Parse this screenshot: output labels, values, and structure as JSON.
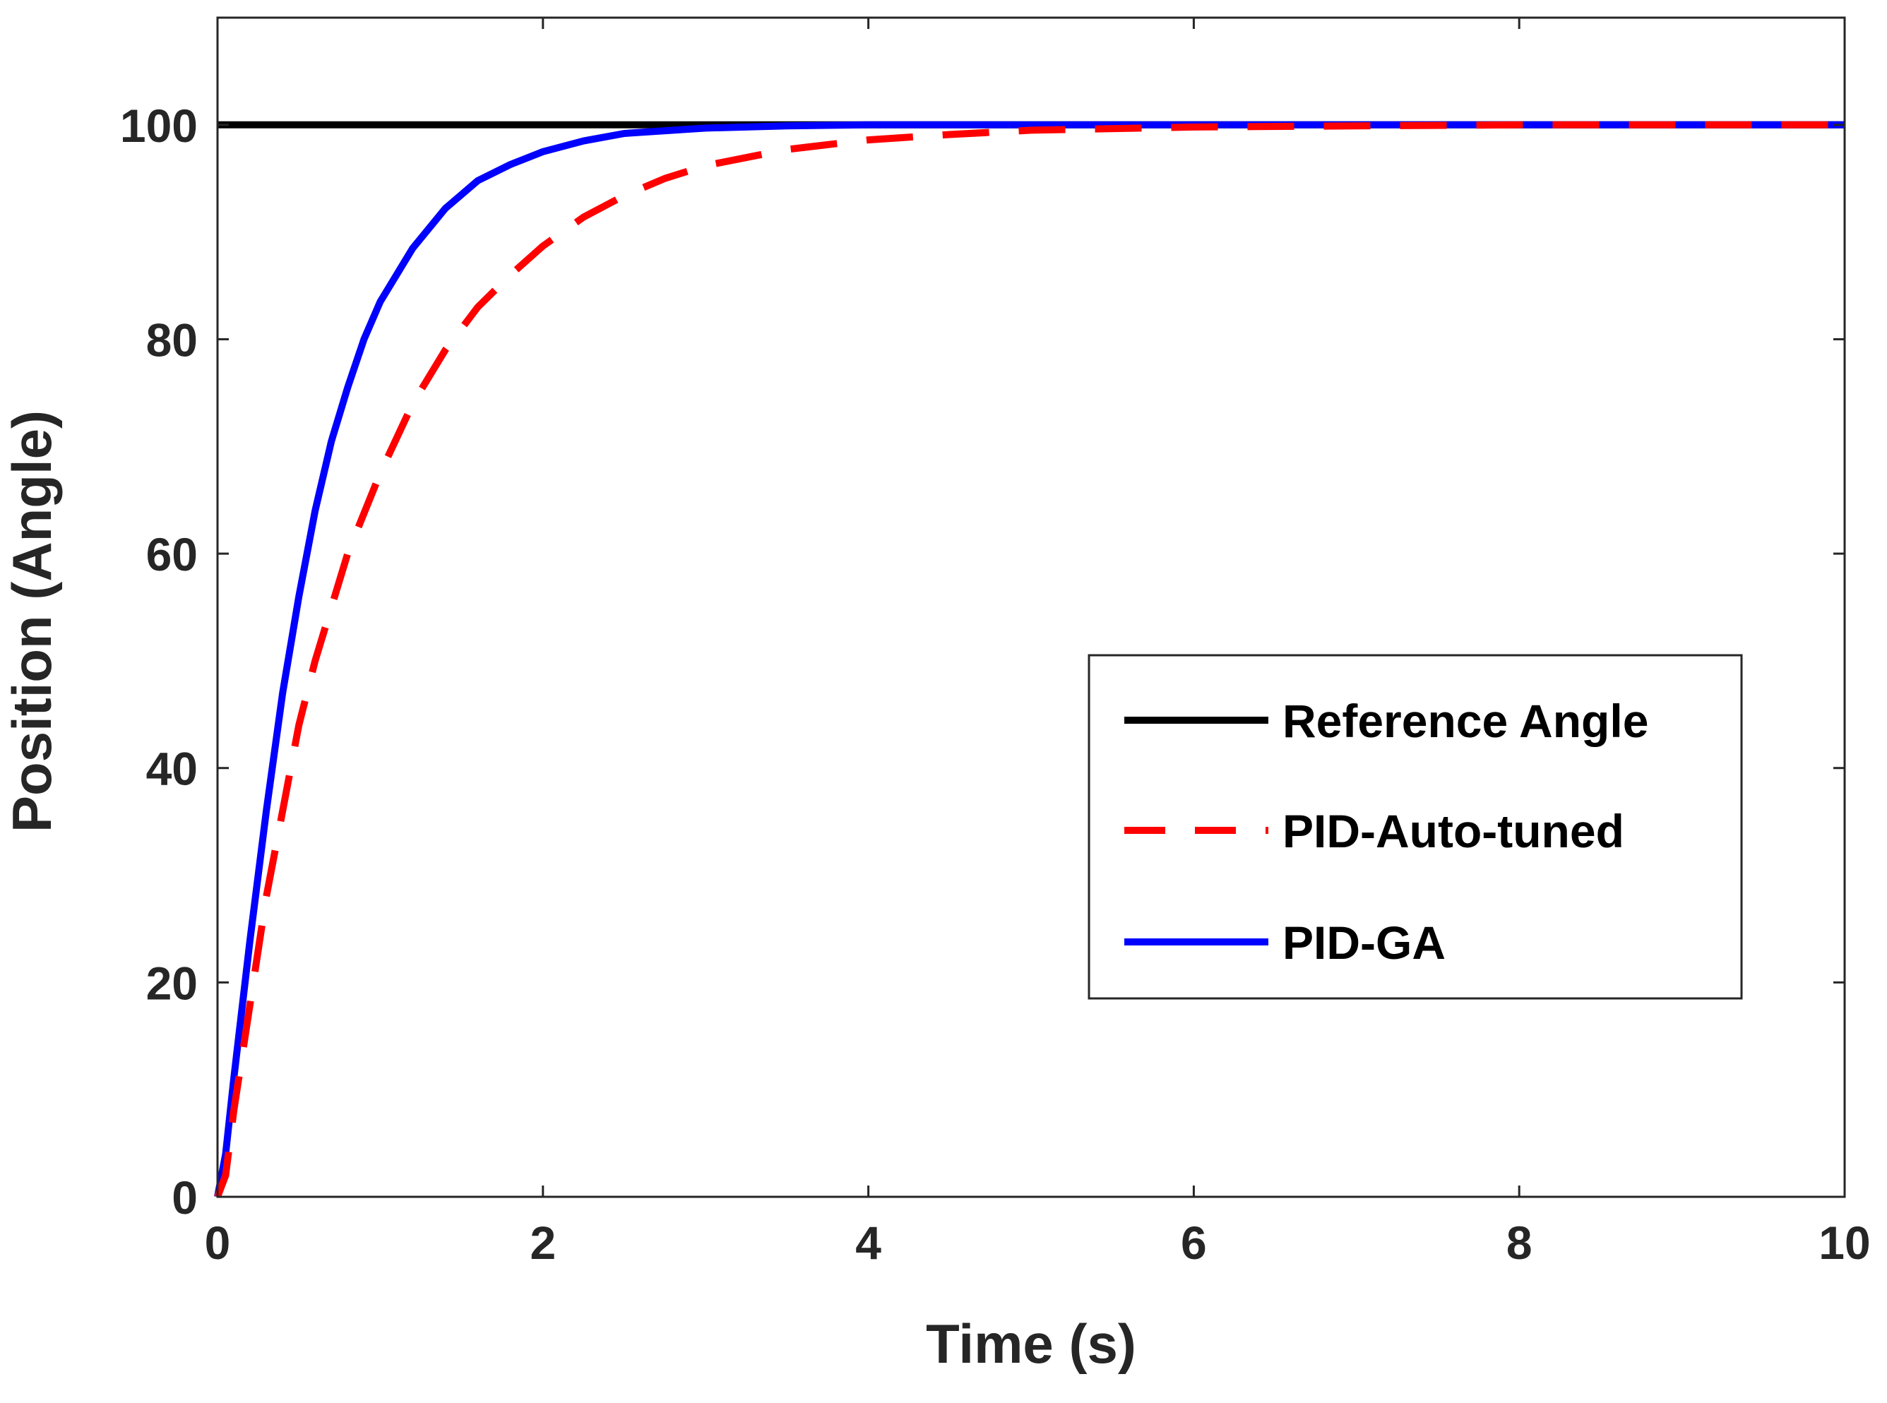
{
  "chart_data": {
    "type": "line",
    "title": "",
    "xlabel": "Time (s)",
    "ylabel": "Position (Angle)",
    "xlim": [
      0,
      10
    ],
    "ylim": [
      0,
      110
    ],
    "xticks": [
      0,
      2,
      4,
      6,
      8,
      10
    ],
    "yticks": [
      0,
      20,
      40,
      60,
      80,
      100
    ],
    "xtick_labels": [
      "0",
      "2",
      "4",
      "6",
      "8",
      "10"
    ],
    "ytick_labels": [
      "0",
      "20",
      "40",
      "60",
      "80",
      "100"
    ],
    "grid": false,
    "legend_position": "right",
    "series": [
      {
        "name": "Reference Angle",
        "color": "#000000",
        "style": "solid",
        "x": [
          0,
          10
        ],
        "y": [
          100,
          100
        ]
      },
      {
        "name": "PID-Auto-tuned",
        "color": "#ff0000",
        "style": "dashed",
        "x": [
          0,
          0.05,
          0.1,
          0.2,
          0.3,
          0.4,
          0.5,
          0.6,
          0.8,
          1.0,
          1.2,
          1.4,
          1.6,
          1.8,
          2.0,
          2.25,
          2.5,
          2.75,
          3.0,
          3.5,
          4.0,
          4.5,
          5.0,
          6.0,
          7.0,
          8.0,
          10.0
        ],
        "y": [
          0,
          2,
          8,
          18,
          28,
          36,
          44,
          50,
          60,
          67.5,
          74,
          79,
          83,
          86,
          88.7,
          91.4,
          93.4,
          95,
          96.2,
          97.7,
          98.6,
          99.1,
          99.5,
          99.8,
          99.9,
          100,
          100
        ]
      },
      {
        "name": "PID-GA",
        "color": "#0000ff",
        "style": "solid",
        "x": [
          0,
          0.05,
          0.1,
          0.2,
          0.3,
          0.4,
          0.5,
          0.6,
          0.7,
          0.8,
          0.9,
          1.0,
          1.2,
          1.4,
          1.6,
          1.8,
          2.0,
          2.25,
          2.5,
          3.0,
          3.5,
          4.0,
          5.0,
          10.0
        ],
        "y": [
          0,
          4,
          11,
          24,
          36,
          47,
          56,
          64,
          70.5,
          75.5,
          80,
          83.5,
          88.5,
          92.2,
          94.8,
          96.3,
          97.5,
          98.5,
          99.2,
          99.7,
          99.9,
          100,
          100,
          100
        ]
      }
    ]
  }
}
